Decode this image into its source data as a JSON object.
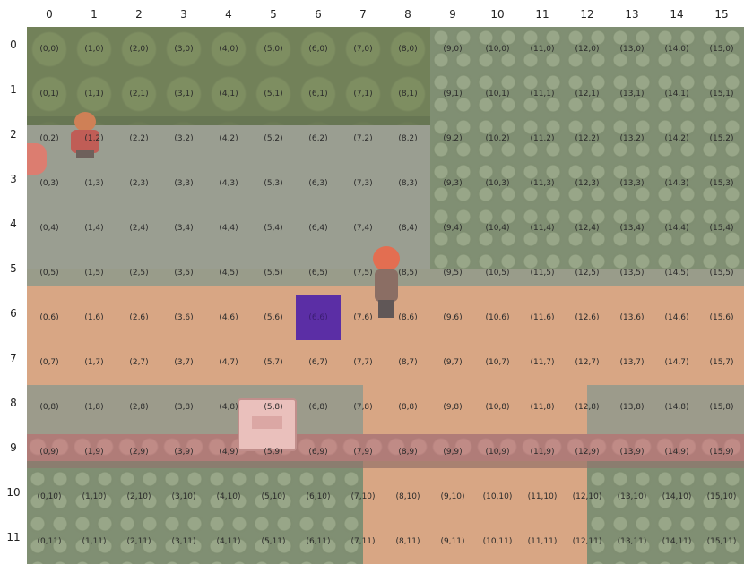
{
  "grid": {
    "cols": 16,
    "rows": 12,
    "col_labels": [
      "0",
      "1",
      "2",
      "3",
      "4",
      "5",
      "6",
      "7",
      "8",
      "9",
      "10",
      "11",
      "12",
      "13",
      "14",
      "15"
    ],
    "row_labels": [
      "0",
      "1",
      "2",
      "3",
      "4",
      "5",
      "6",
      "7",
      "8",
      "9",
      "10",
      "11"
    ],
    "highlighted_cell": {
      "col": 6,
      "row": 6,
      "label": "(6,6)",
      "color": "#5b2ea5"
    }
  },
  "scene": {
    "player_icon": "trainer-player-icon",
    "npc_icon": "trainer-npc-icon",
    "sign_icon": "wooden-sign-icon",
    "colors": {
      "path": "#d39a73",
      "grass": "#6f8060",
      "ledge": "#a56a66"
    }
  }
}
